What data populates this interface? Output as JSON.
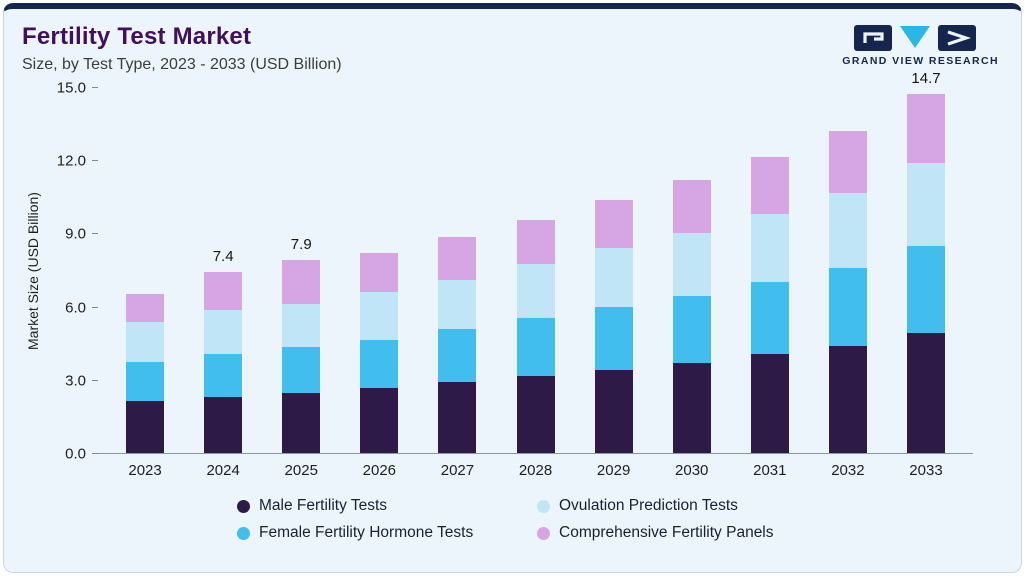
{
  "header": {
    "title": "Fertility Test Market",
    "subtitle": "Size, by Test Type, 2023 - 2033 (USD Billion)",
    "logo_text": "GRAND VIEW RESEARCH"
  },
  "colors": {
    "accent_bar": "#16254E",
    "card_background": "#EBF5FB",
    "title_text": "#40105E",
    "logo_navy": "#16254E",
    "logo_cyan": "#2BB7E6"
  },
  "chart_data": {
    "type": "bar",
    "stacked": true,
    "title": "Fertility Test Market",
    "subtitle": "Size, by Test Type, 2023 - 2033 (USD Billion)",
    "xlabel": "",
    "ylabel": "Market Size (USD Billion)",
    "ylim": [
      0,
      15
    ],
    "yticks": [
      "0.0",
      "3.0",
      "6.0",
      "9.0",
      "12.0",
      "15.0"
    ],
    "grid": false,
    "legend_position": "bottom",
    "categories": [
      "2023",
      "2024",
      "2025",
      "2026",
      "2027",
      "2028",
      "2029",
      "2030",
      "2031",
      "2032",
      "2033"
    ],
    "series": [
      {
        "name": "Male Fertility Tests",
        "color": "#2E1A47",
        "values": [
          2.15,
          2.3,
          2.45,
          2.65,
          2.9,
          3.15,
          3.4,
          3.7,
          4.05,
          4.4,
          4.9
        ]
      },
      {
        "name": "Female Fertility Hormone Tests",
        "color": "#41BDEE",
        "values": [
          1.6,
          1.75,
          1.9,
          2.0,
          2.2,
          2.4,
          2.6,
          2.75,
          2.95,
          3.2,
          3.6
        ]
      },
      {
        "name": "Ovulation Prediction Tests",
        "color": "#C0E5F7",
        "values": [
          1.6,
          1.8,
          1.75,
          1.95,
          2.0,
          2.2,
          2.4,
          2.55,
          2.8,
          3.05,
          3.4
        ]
      },
      {
        "name": "Comprehensive Fertility Panels",
        "color": "#D6A6E4",
        "values": [
          1.15,
          1.55,
          1.8,
          1.6,
          1.75,
          1.8,
          1.95,
          2.2,
          2.35,
          2.55,
          2.8
        ]
      }
    ],
    "totals": [
      6.5,
      7.4,
      7.9,
      8.2,
      8.85,
      9.55,
      10.35,
      11.2,
      12.15,
      13.2,
      14.7
    ],
    "annotations": [
      {
        "category": "2024",
        "text": "7.4"
      },
      {
        "category": "2025",
        "text": "7.9"
      },
      {
        "category": "2033",
        "text": "14.7"
      }
    ],
    "legend": [
      {
        "label": "Male Fertility Tests",
        "color": "#2E1A47"
      },
      {
        "label": "Ovulation Prediction Tests",
        "color": "#C0E5F7"
      },
      {
        "label": "Female Fertility Hormone Tests",
        "color": "#41BDEE"
      },
      {
        "label": "Comprehensive Fertility Panels",
        "color": "#D6A6E4"
      }
    ]
  }
}
